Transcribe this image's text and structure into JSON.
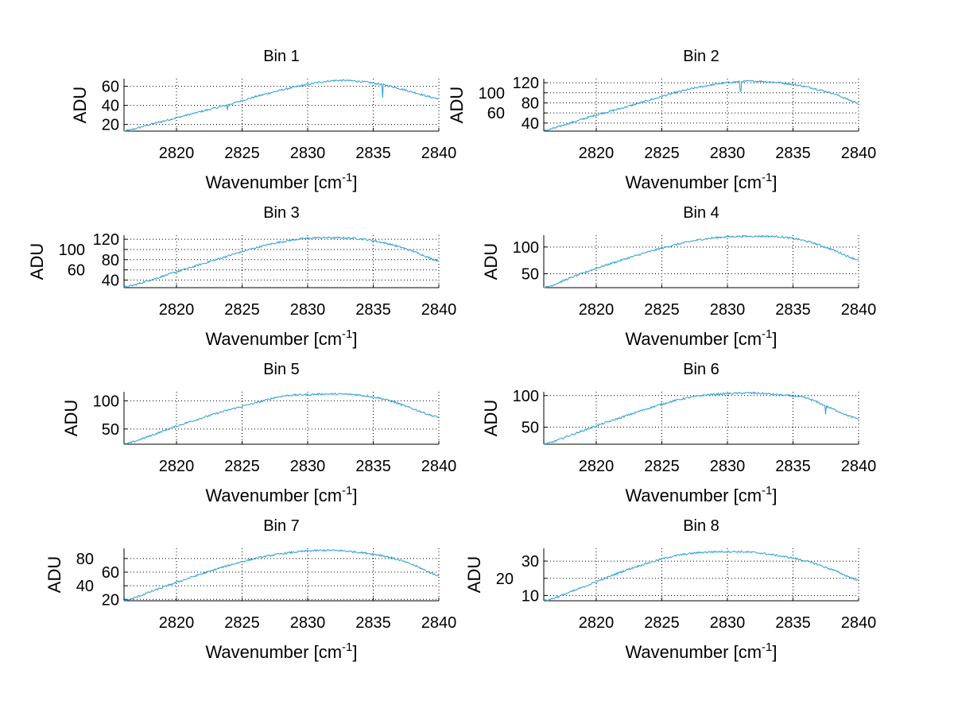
{
  "figure": {
    "background": "#ffffff",
    "line_color": "#2b9fd6"
  },
  "chart_data": [
    {
      "type": "line",
      "title": "Bin 1",
      "xlabel": {
        "base": "Wavenumber [cm",
        "sup": "-1",
        "close": "]"
      },
      "ylabel": "ADU",
      "xlim": [
        2816,
        2840
      ],
      "ylim": [
        13,
        68
      ],
      "xticks": [
        2820,
        2825,
        2830,
        2835,
        2840
      ],
      "yticks": [
        20,
        40,
        60
      ],
      "grid": true,
      "x": [
        2816,
        2818,
        2820,
        2822,
        2824,
        2826,
        2828,
        2830,
        2832,
        2834,
        2836,
        2838,
        2840
      ],
      "values": [
        13,
        20,
        27,
        34,
        41,
        49,
        56,
        62,
        66,
        65,
        61,
        54,
        47
      ],
      "dips": [
        {
          "x": 2823.9,
          "y": 35
        },
        {
          "x": 2835.7,
          "y": 48
        }
      ]
    },
    {
      "type": "line",
      "title": "Bin 2",
      "xlabel": {
        "base": "Wavenumber [cm",
        "sup": "-1",
        "close": "]"
      },
      "ylabel": "ADU",
      "xlim": [
        2816,
        2840
      ],
      "ylim": [
        24,
        128
      ],
      "xticks": [
        2820,
        2825,
        2830,
        2835,
        2840
      ],
      "yticks": [
        40,
        60,
        80,
        100,
        120
      ],
      "grid": true,
      "x": [
        2816,
        2818,
        2820,
        2822,
        2824,
        2826,
        2828,
        2830,
        2832,
        2834,
        2836,
        2838,
        2840
      ],
      "values": [
        25,
        40,
        56,
        70,
        85,
        100,
        112,
        120,
        123,
        120,
        112,
        99,
        80
      ],
      "dips": [
        {
          "x": 2831,
          "y": 103
        }
      ]
    },
    {
      "type": "line",
      "title": "Bin 3",
      "xlabel": {
        "base": "Wavenumber [cm",
        "sup": "-1",
        "close": "]"
      },
      "ylabel": "ADU",
      "xlim": [
        2816,
        2840
      ],
      "ylim": [
        25,
        128
      ],
      "xticks": [
        2820,
        2825,
        2830,
        2835,
        2840
      ],
      "yticks": [
        40,
        60,
        80,
        100,
        120
      ],
      "grid": true,
      "x": [
        2816,
        2818,
        2820,
        2822,
        2824,
        2826,
        2828,
        2830,
        2832,
        2834,
        2836,
        2838,
        2840
      ],
      "values": [
        26,
        40,
        56,
        72,
        88,
        103,
        115,
        122,
        123,
        121,
        112,
        97,
        78
      ],
      "dips": []
    },
    {
      "type": "line",
      "title": "Bin 4",
      "xlabel": {
        "base": "Wavenumber [cm",
        "sup": "-1",
        "close": "]"
      },
      "ylabel": "ADU",
      "xlim": [
        2816,
        2840
      ],
      "ylim": [
        24,
        122
      ],
      "xticks": [
        2820,
        2825,
        2830,
        2835,
        2840
      ],
      "yticks": [
        50,
        100
      ],
      "grid": true,
      "x": [
        2816,
        2818,
        2820,
        2822,
        2824,
        2826,
        2828,
        2830,
        2832,
        2834,
        2836,
        2838,
        2840
      ],
      "values": [
        24,
        42,
        60,
        76,
        91,
        104,
        114,
        119,
        120,
        119,
        111,
        95,
        76
      ],
      "dips": []
    },
    {
      "type": "line",
      "title": "Bin 5",
      "xlabel": {
        "base": "Wavenumber [cm",
        "sup": "-1",
        "close": "]"
      },
      "ylabel": "ADU",
      "xlim": [
        2816,
        2840
      ],
      "ylim": [
        23,
        116
      ],
      "xticks": [
        2820,
        2825,
        2830,
        2835,
        2840
      ],
      "yticks": [
        50,
        100
      ],
      "grid": true,
      "x": [
        2816,
        2818,
        2820,
        2822,
        2824,
        2826,
        2828,
        2830,
        2832,
        2834,
        2836,
        2838,
        2840
      ],
      "values": [
        23,
        38,
        55,
        70,
        84,
        96,
        108,
        111,
        112,
        110,
        102,
        86,
        71
      ],
      "dips": []
    },
    {
      "type": "line",
      "title": "Bin 6",
      "xlabel": {
        "base": "Wavenumber [cm",
        "sup": "-1",
        "close": "]"
      },
      "ylabel": "ADU",
      "xlim": [
        2816,
        2840
      ],
      "ylim": [
        23,
        106
      ],
      "xticks": [
        2820,
        2825,
        2830,
        2835,
        2840
      ],
      "yticks": [
        50,
        100
      ],
      "grid": true,
      "x": [
        2816,
        2818,
        2820,
        2822,
        2824,
        2826,
        2828,
        2830,
        2832,
        2834,
        2836,
        2838,
        2840
      ],
      "values": [
        23,
        37,
        52,
        66,
        80,
        92,
        100,
        103,
        104,
        101,
        96,
        79,
        63
      ],
      "dips": [
        {
          "x": 2837.5,
          "y": 70
        }
      ]
    },
    {
      "type": "line",
      "title": "Bin 7",
      "xlabel": {
        "base": "Wavenumber [cm",
        "sup": "-1",
        "close": "]"
      },
      "ylabel": "ADU",
      "xlim": [
        2816,
        2840
      ],
      "ylim": [
        18,
        95
      ],
      "xticks": [
        2820,
        2825,
        2830,
        2835,
        2840
      ],
      "yticks": [
        20,
        40,
        60,
        80
      ],
      "grid": true,
      "x": [
        2816,
        2818,
        2820,
        2822,
        2824,
        2826,
        2828,
        2830,
        2832,
        2834,
        2836,
        2838,
        2840
      ],
      "values": [
        18,
        31,
        45,
        58,
        70,
        80,
        87,
        91,
        92,
        89,
        83,
        71,
        55
      ],
      "dips": []
    },
    {
      "type": "line",
      "title": "Bin 8",
      "xlabel": {
        "base": "Wavenumber [cm",
        "sup": "-1",
        "close": "]"
      },
      "ylabel": "ADU",
      "xlim": [
        2816,
        2840
      ],
      "ylim": [
        7,
        37.4
      ],
      "xticks": [
        2820,
        2825,
        2830,
        2835,
        2840
      ],
      "yticks": [
        10,
        20,
        30
      ],
      "grid": true,
      "x": [
        2816,
        2818,
        2820,
        2822,
        2824,
        2826,
        2828,
        2830,
        2832,
        2834,
        2836,
        2838,
        2840
      ],
      "values": [
        7,
        12,
        18,
        24,
        29,
        33,
        35,
        35.5,
        35,
        33,
        30,
        25,
        19
      ],
      "dips": []
    }
  ]
}
